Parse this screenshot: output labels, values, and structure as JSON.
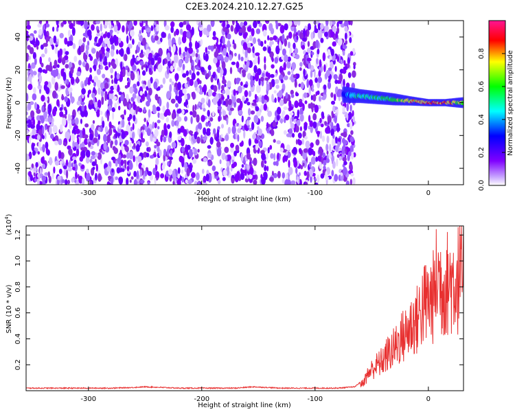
{
  "title": "C2E3.2024.210.12.27.G25",
  "chart_data": [
    {
      "type": "heatmap",
      "xlabel": "Height of straight line (km)",
      "ylabel": "Frequency (Hz)",
      "xlim": [
        -355,
        31
      ],
      "ylim": [
        -50,
        50
      ],
      "x_ticks": [
        -300,
        -200,
        -100,
        0
      ],
      "x_tick_labels": [
        "-300",
        "-200",
        "-100",
        "0"
      ],
      "y_ticks": [
        -40,
        -20,
        0,
        20,
        40
      ],
      "y_tick_labels": [
        "-40",
        "-20",
        "0",
        "20",
        "40"
      ],
      "noise_region_x": [
        -355,
        -65
      ],
      "signal_track": {
        "x": [
          -75,
          -60,
          -45,
          -30,
          -15,
          0,
          15,
          31
        ],
        "frequency_hz": [
          5,
          4,
          3,
          2,
          1,
          0,
          0,
          0
        ],
        "amplitude": [
          0.4,
          0.55,
          0.6,
          0.65,
          0.8,
          0.9,
          0.9,
          0.7
        ]
      },
      "colorbar": {
        "label": "Normalized spectral amplitude",
        "range": [
          0,
          1
        ],
        "ticks": [
          0.0,
          0.2,
          0.4,
          0.6,
          0.8
        ],
        "tick_labels": [
          "0.0",
          "0.2",
          "0.4",
          "0.6",
          "0.8"
        ],
        "colors": [
          "#ffffff",
          "#7f00ff",
          "#0000ff",
          "#00ffff",
          "#00ff00",
          "#ffff00",
          "#ff0000",
          "#ff1493"
        ]
      }
    },
    {
      "type": "line",
      "xlabel": "Height of straight line (km)",
      "ylabel": "SNR (10 * v/v)",
      "y_multiplier_label": "(x10",
      "y_multiplier_exp": "4",
      "xlim": [
        -355,
        31
      ],
      "ylim": [
        0,
        1.27
      ],
      "x_ticks": [
        -300,
        -200,
        -100,
        0
      ],
      "x_tick_labels": [
        "-300",
        "-200",
        "-100",
        "0"
      ],
      "y_ticks": [
        0.2,
        0.4,
        0.6,
        0.8,
        1.0,
        1.2
      ],
      "y_tick_labels": [
        "0.2",
        "0.4",
        "0.6",
        "0.8",
        "1.0",
        "1.2"
      ],
      "series": [
        {
          "color": "#e83030",
          "x": [
            -355,
            -320,
            -280,
            -260,
            -250,
            -220,
            -200,
            -170,
            -155,
            -130,
            -100,
            -80,
            -65,
            -58,
            -52,
            -48,
            -42,
            -35,
            -30,
            -25,
            -20,
            -15,
            -10,
            -5,
            0,
            5,
            8,
            12,
            18,
            24,
            31
          ],
          "values": [
            0.02,
            0.02,
            0.02,
            0.025,
            0.03,
            0.02,
            0.02,
            0.02,
            0.03,
            0.02,
            0.02,
            0.02,
            0.03,
            0.08,
            0.2,
            0.25,
            0.3,
            0.4,
            0.45,
            0.55,
            0.6,
            0.7,
            0.75,
            0.9,
            0.95,
            1.0,
            1.25,
            1.1,
            1.15,
            1.18,
            1.22
          ]
        }
      ]
    }
  ]
}
